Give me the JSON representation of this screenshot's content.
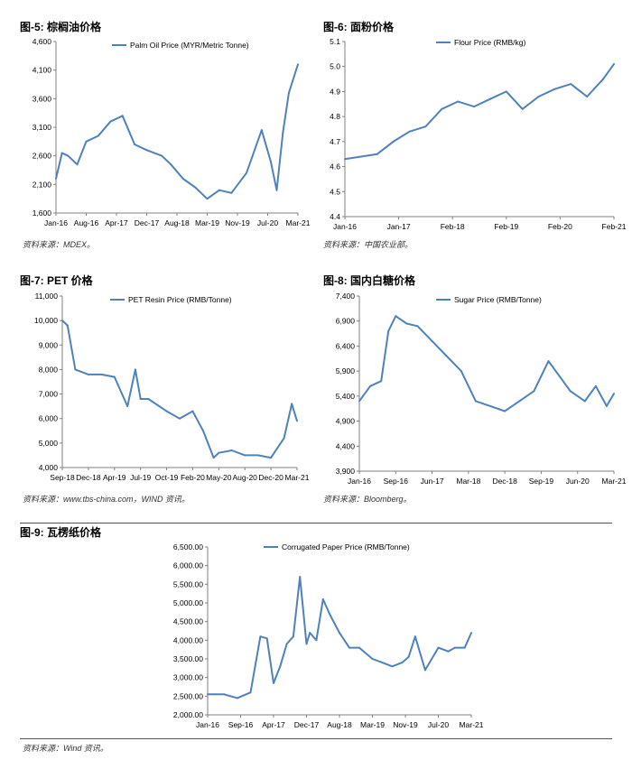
{
  "colors": {
    "series": "#4f81bd",
    "axis": "#808080"
  },
  "chart_data": [
    {
      "id": "c5",
      "type": "line",
      "figure_title": "图-5: 棕榈油价格",
      "legend": "Palm Oil Price (MYR/Metric Tonne)",
      "source": "资料来源：MDEX。",
      "y_ticks": [
        "4,600",
        "4,100",
        "3,600",
        "3,100",
        "2,600",
        "2,100",
        "1,600"
      ],
      "ylim": [
        1600,
        4600
      ],
      "x_ticks": [
        "Jan-16",
        "Aug-16",
        "Apr-17",
        "Dec-17",
        "Aug-18",
        "Mar-19",
        "Nov-19",
        "Jul-20",
        "Mar-21"
      ],
      "x": [
        0,
        0.2,
        0.4,
        0.7,
        1.0,
        1.4,
        1.8,
        2.2,
        2.6,
        3.0,
        3.5,
        3.8,
        4.2,
        4.6,
        5.0,
        5.4,
        5.8,
        6.3,
        6.8,
        7.1,
        7.3,
        7.5,
        7.7,
        8.0
      ],
      "values": [
        2200,
        2650,
        2600,
        2450,
        2850,
        2950,
        3200,
        3300,
        2800,
        2700,
        2600,
        2450,
        2200,
        2050,
        1850,
        2000,
        1950,
        2300,
        3050,
        2500,
        2000,
        3000,
        3700,
        4200
      ]
    },
    {
      "id": "c6",
      "type": "line",
      "figure_title": "图-6: 面粉价格",
      "legend": "Flour Price (RMB/kg)",
      "source": "资料来源：中国农业部。",
      "y_ticks": [
        "5.1",
        "5.0",
        "4.9",
        "4.8",
        "4.7",
        "4.6",
        "4.5",
        "4.4"
      ],
      "ylim": [
        4.4,
        5.1
      ],
      "x_ticks": [
        "Jan-16",
        "Jan-17",
        "Feb-18",
        "Feb-19",
        "Feb-20",
        "Feb-21"
      ],
      "x": [
        0,
        0.3,
        0.6,
        0.9,
        1.2,
        1.5,
        1.8,
        2.1,
        2.4,
        2.7,
        3.0,
        3.3,
        3.6,
        3.9,
        4.2,
        4.5,
        4.8,
        5.0
      ],
      "values": [
        4.63,
        4.64,
        4.65,
        4.7,
        4.74,
        4.76,
        4.83,
        4.86,
        4.84,
        4.87,
        4.9,
        4.83,
        4.88,
        4.91,
        4.93,
        4.88,
        4.95,
        5.01
      ]
    },
    {
      "id": "c7",
      "type": "line",
      "figure_title": "图-7: PET 价格",
      "legend": "PET Resin Price (RMB/Tonne)",
      "source": "资料来源：www.tbs-china.com，WIND 资讯。",
      "y_ticks": [
        "11,000",
        "10,000",
        "9,000",
        "8,000",
        "7,000",
        "6,000",
        "5,000",
        "4,000"
      ],
      "ylim": [
        4000,
        11000
      ],
      "x_ticks": [
        "Sep-18",
        "Dec-18",
        "Apr-19",
        "Jul-19",
        "Oct-19",
        "Feb-20",
        "May-20",
        "Aug-20",
        "Dec-20",
        "Mar-21"
      ],
      "x": [
        0,
        0.2,
        0.5,
        1.0,
        1.5,
        2.0,
        2.5,
        2.8,
        3.0,
        3.3,
        4.0,
        4.5,
        5.0,
        5.4,
        5.8,
        6.0,
        6.5,
        7.0,
        7.5,
        8.0,
        8.5,
        8.8,
        9.0
      ],
      "values": [
        10000,
        9800,
        8000,
        7800,
        7800,
        7700,
        6500,
        8000,
        6800,
        6800,
        6300,
        6000,
        6300,
        5500,
        4400,
        4600,
        4700,
        4500,
        4500,
        4400,
        5200,
        6600,
        5900
      ]
    },
    {
      "id": "c8",
      "type": "line",
      "figure_title": "图-8: 国内白糖价格",
      "legend": "Sugar Price (RMB/Tonne)",
      "source": "资料来源：Bloomberg。",
      "y_ticks": [
        "7,400",
        "6,900",
        "6,400",
        "5,900",
        "5,400",
        "4,900",
        "4,400",
        "3,900"
      ],
      "ylim": [
        3900,
        7400
      ],
      "x_ticks": [
        "Jan-16",
        "Sep-16",
        "Jun-17",
        "Mar-18",
        "Dec-18",
        "Sep-19",
        "Jun-20",
        "Mar-21"
      ],
      "x": [
        0,
        0.3,
        0.6,
        0.8,
        1.0,
        1.3,
        1.6,
        2.0,
        2.4,
        2.8,
        3.2,
        3.6,
        4.0,
        4.4,
        4.8,
        5.2,
        5.5,
        5.8,
        6.2,
        6.5,
        6.8,
        7.0
      ],
      "values": [
        5300,
        5600,
        5700,
        6700,
        7000,
        6850,
        6800,
        6500,
        6200,
        5900,
        5300,
        5200,
        5100,
        5300,
        5500,
        6100,
        5800,
        5500,
        5300,
        5600,
        5200,
        5450
      ]
    },
    {
      "id": "c9",
      "type": "line",
      "figure_title": "图-9: 瓦楞纸价格",
      "legend": "Corrugated Paper Price (RMB/Tonne)",
      "source": "资料来源：Wind 资讯。",
      "y_ticks": [
        "6,500.00",
        "6,000.00",
        "5,500.00",
        "5,000.00",
        "4,500.00",
        "4,000.00",
        "3,500.00",
        "3,000.00",
        "2,500.00",
        "2,000.00"
      ],
      "ylim": [
        2000,
        6500
      ],
      "x_ticks": [
        "Jan-16",
        "Sep-16",
        "Apr-17",
        "Dec-17",
        "Aug-18",
        "Mar-19",
        "Nov-19",
        "Jul-20",
        "Mar-21"
      ],
      "x": [
        0,
        0.5,
        0.9,
        1.3,
        1.6,
        1.8,
        2.0,
        2.2,
        2.4,
        2.6,
        2.8,
        3.0,
        3.1,
        3.3,
        3.5,
        3.7,
        4.0,
        4.3,
        4.6,
        5.0,
        5.3,
        5.6,
        5.9,
        6.1,
        6.3,
        6.6,
        7.0,
        7.3,
        7.5,
        7.8,
        8.0
      ],
      "values": [
        2550,
        2550,
        2450,
        2600,
        4100,
        4050,
        2850,
        3300,
        3900,
        4100,
        5700,
        3900,
        4200,
        4000,
        5100,
        4700,
        4200,
        3800,
        3800,
        3500,
        3400,
        3300,
        3400,
        3550,
        4100,
        3200,
        3800,
        3700,
        3800,
        3800,
        4200
      ]
    }
  ]
}
